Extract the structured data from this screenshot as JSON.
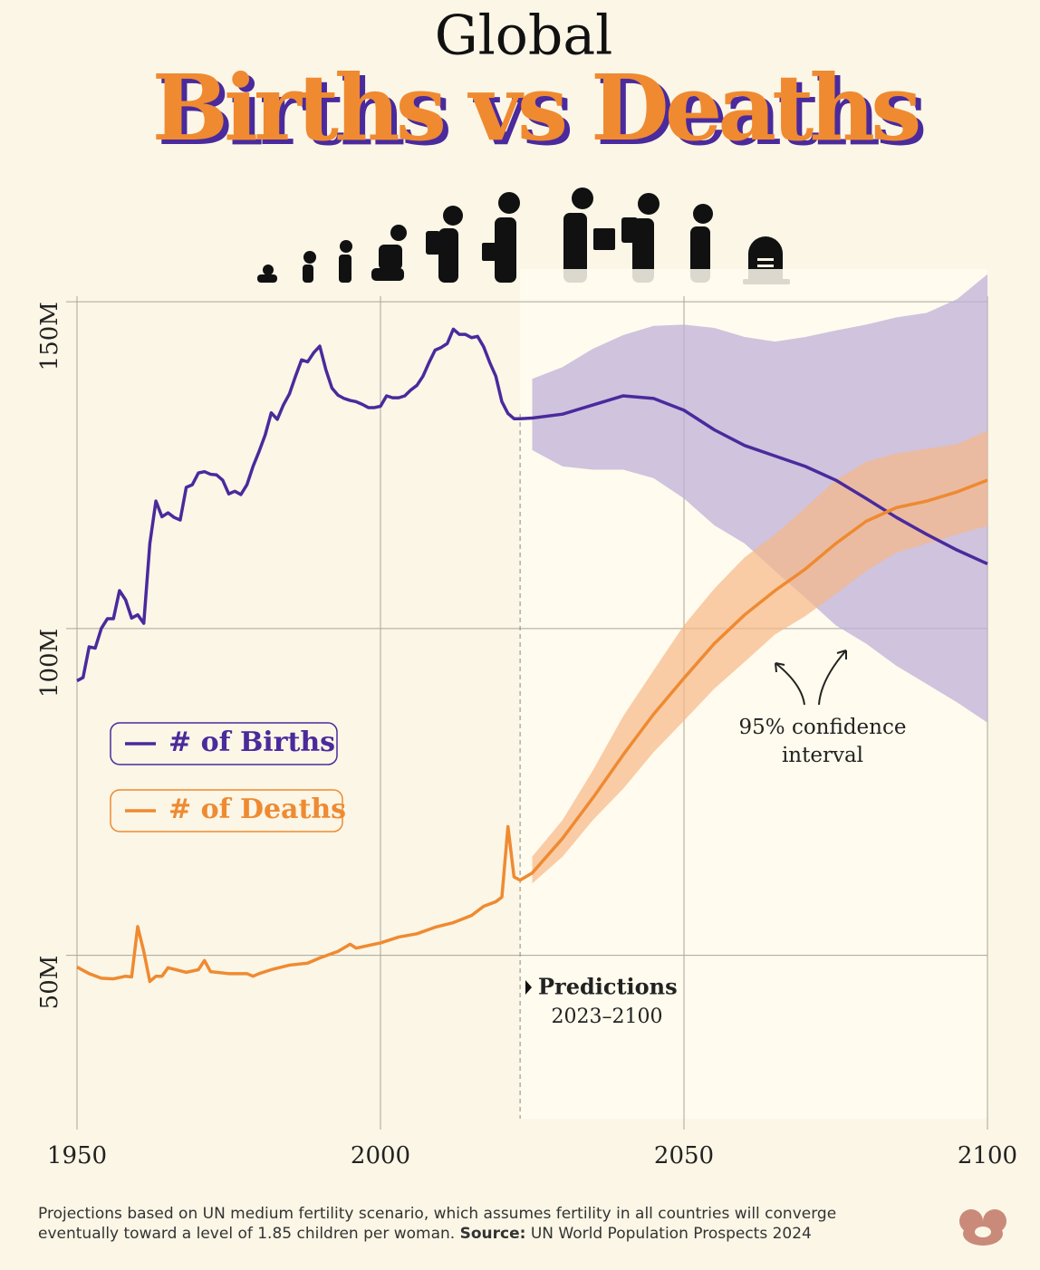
{
  "chart_data": {
    "type": "line",
    "supertitle": "Global",
    "title": "Births vs Deaths",
    "xlim": [
      1950,
      2100
    ],
    "xticks": [
      1950,
      2000,
      2050,
      2100
    ],
    "ylim": [
      25,
      155
    ],
    "yticks": [
      {
        "value": 50,
        "label": "50M"
      },
      {
        "value": 100,
        "label": "100M"
      },
      {
        "value": 150,
        "label": "150M"
      }
    ],
    "grid": true,
    "predictions": {
      "label": "Predictions",
      "range": "2023–2100",
      "start": 2023
    },
    "annotation": [
      "95% confidence",
      "interval"
    ],
    "series": [
      {
        "name": "# of Births",
        "color": "#4a2a9c",
        "band_color": "#bfb0d8",
        "x": [
          1950,
          1951,
          1952,
          1953,
          1954,
          1955,
          1956,
          1957,
          1958,
          1959,
          1960,
          1961,
          1962,
          1963,
          1964,
          1965,
          1966,
          1967,
          1968,
          1969,
          1970,
          1971,
          1972,
          1973,
          1974,
          1975,
          1976,
          1977,
          1978,
          1979,
          1980,
          1981,
          1982,
          1983,
          1984,
          1985,
          1986,
          1987,
          1988,
          1989,
          1990,
          1991,
          1992,
          1993,
          1994,
          1995,
          1996,
          1997,
          1998,
          1999,
          2000,
          2001,
          2002,
          2003,
          2004,
          2005,
          2006,
          2007,
          2008,
          2009,
          2010,
          2011,
          2012,
          2013,
          2014,
          2015,
          2016,
          2017,
          2018,
          2019,
          2020,
          2021,
          2022,
          2023,
          2025,
          2030,
          2035,
          2040,
          2045,
          2050,
          2055,
          2060,
          2065,
          2070,
          2075,
          2080,
          2085,
          2090,
          2095,
          2100
        ],
        "values": [
          92,
          92.5,
          97.2,
          97,
          100,
          101.5,
          101.5,
          105.8,
          104.4,
          101.6,
          102.1,
          100.8,
          113,
          119.5,
          117.1,
          117.7,
          117,
          116.6,
          121.6,
          122,
          123.8,
          124,
          123.6,
          123.5,
          122.7,
          120.6,
          121,
          120.5,
          122,
          124.8,
          127.1,
          129.6,
          133,
          132,
          134.2,
          135.9,
          138.6,
          141.1,
          140.8,
          142.2,
          143.2,
          139.6,
          136.8,
          135.7,
          135.2,
          134.9,
          134.7,
          134.3,
          133.8,
          133.8,
          134,
          135.6,
          135.3,
          135.3,
          135.6,
          136.5,
          137.2,
          138.6,
          140.7,
          142.6,
          143,
          143.6,
          145.8,
          145,
          145,
          144.5,
          144.7,
          143.1,
          140.7,
          138.6,
          134.7,
          132.9,
          132.1,
          132.1,
          132.2,
          132.8,
          134.2,
          135.6,
          135.2,
          133.4,
          130.4,
          128,
          126.4,
          124.8,
          122.7,
          119.9,
          117,
          114.4,
          112,
          109.9
        ],
        "ci_x": [
          2025,
          2030,
          2035,
          2040,
          2045,
          2050,
          2055,
          2060,
          2065,
          2070,
          2075,
          2080,
          2085,
          2090,
          2095,
          2100
        ],
        "ci_upper": [
          138.2,
          140,
          142.8,
          144.9,
          146.3,
          146.5,
          146,
          144.6,
          143.9,
          144.6,
          145.6,
          146.5,
          147.6,
          148.3,
          150.4,
          154.2
        ],
        "ci_lower": [
          127.3,
          124.8,
          124.3,
          124.3,
          123,
          119.9,
          115.8,
          113,
          108.8,
          104.7,
          100.5,
          97.7,
          94.3,
          91.5,
          88.7,
          85.6
        ]
      },
      {
        "name": "# of Deaths",
        "color": "#ef8a31",
        "band_color": "#f6b887",
        "x": [
          1950,
          1952,
          1954,
          1956,
          1958,
          1959,
          1960,
          1961,
          1962,
          1963,
          1964,
          1965,
          1968,
          1970,
          1971,
          1972,
          1975,
          1978,
          1979,
          1980,
          1982,
          1985,
          1988,
          1990,
          1993,
          1995,
          1996,
          1999,
          2000,
          2003,
          2006,
          2009,
          2012,
          2015,
          2017,
          2019,
          2020,
          2021,
          2022,
          2023,
          2025,
          2030,
          2035,
          2040,
          2045,
          2050,
          2055,
          2060,
          2065,
          2070,
          2075,
          2080,
          2085,
          2090,
          2095,
          2100
        ],
        "values": [
          48.2,
          47.2,
          46.5,
          46.4,
          46.8,
          46.7,
          54.4,
          50.6,
          46,
          46.8,
          46.8,
          48.1,
          47.4,
          47.8,
          49.2,
          47.5,
          47.2,
          47.2,
          46.8,
          47.2,
          47.8,
          48.5,
          48.8,
          49.6,
          50.6,
          51.7,
          51.1,
          51.7,
          51.9,
          52.8,
          53.3,
          54.3,
          55,
          56.1,
          57.5,
          58.2,
          58.9,
          69.7,
          62,
          61.5,
          62.6,
          67.9,
          74.1,
          80.7,
          86.9,
          92.4,
          97.7,
          102.1,
          105.8,
          109.1,
          113,
          116.4,
          118.5,
          119.5,
          120.9,
          122.7
        ],
        "ci_x": [
          2025,
          2030,
          2035,
          2040,
          2045,
          2050,
          2055,
          2060,
          2065,
          2070,
          2075,
          2080,
          2085,
          2090,
          2095,
          2100
        ],
        "ci_upper": [
          65.1,
          70.7,
          78.3,
          86.6,
          93.6,
          100.5,
          106.1,
          110.9,
          114.4,
          118.5,
          122.7,
          125.5,
          126.8,
          127.5,
          128.2,
          130.3
        ],
        "ci_lower": [
          61,
          65.1,
          70.7,
          75.5,
          81.1,
          85.9,
          90.8,
          94.9,
          99.1,
          101.9,
          105.3,
          108.8,
          111.6,
          113,
          114.4,
          115.7
        ]
      }
    ],
    "footnote": {
      "text": "Projections based on UN medium fertility scenario, which assumes fertility in all countries will converge",
      "text2": "eventually toward a level of 1.85 children per woman.",
      "source_label": "Source:",
      "source": "UN World Population Prospects 2024"
    }
  }
}
